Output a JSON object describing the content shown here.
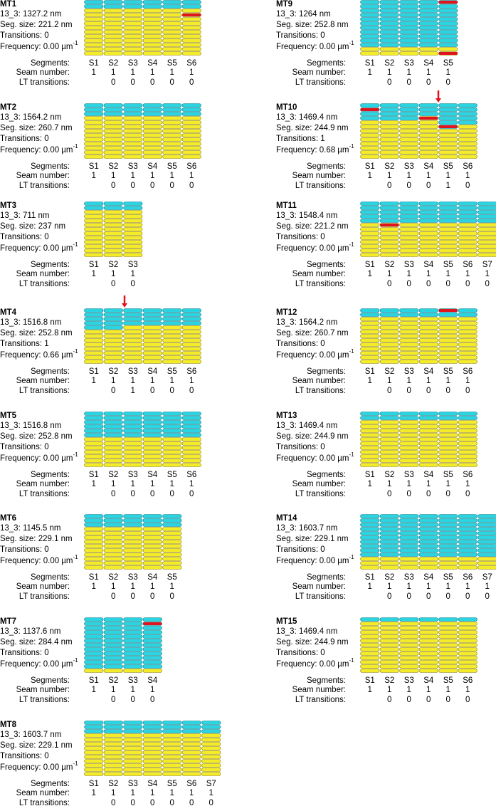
{
  "panels": [
    {
      "title": "MT1",
      "length": "13_3: 1327.2 nm",
      "seg_size": "Seg. size: 221.2 nm",
      "transitions": "Transitions: 0",
      "frequency": "Frequency: 0.00 µm",
      "frequency_exp": "-1",
      "segments_label": "Segments:",
      "segments": [
        "S1",
        "S2",
        "S3",
        "S4",
        "S5",
        "S6"
      ],
      "seam_label": "Seam number:",
      "seam_numbers": [
        1,
        1,
        1,
        1,
        1,
        1
      ],
      "lt_label": "LT transitions:",
      "lt_transitions": [
        0,
        0,
        0,
        0,
        0
      ]
    },
    {
      "title": "MT2",
      "length": "13_3: 1564.2 nm",
      "seg_size": "Seg. size: 260.7 nm",
      "transitions": "Transitions: 0",
      "frequency": "Frequency: 0.00 µm",
      "frequency_exp": "-1",
      "segments_label": "Segments:",
      "segments": [
        "S1",
        "S2",
        "S3",
        "S4",
        "S5",
        "S6"
      ],
      "seam_label": "Seam number:",
      "seam_numbers": [
        1,
        1,
        1,
        1,
        1,
        1
      ],
      "lt_label": "LT transitions:",
      "lt_transitions": [
        0,
        0,
        0,
        0,
        0
      ]
    },
    {
      "title": "MT3",
      "length": "13_3: 711 nm",
      "seg_size": "Seg. size: 237 nm",
      "transitions": "Transitions: 0",
      "frequency": "Frequency: 0.00 µm",
      "frequency_exp": "-1",
      "segments_label": "Segments:",
      "segments": [
        "S1",
        "S2",
        "S3"
      ],
      "seam_label": "Seam number:",
      "seam_numbers": [
        1,
        1,
        1
      ],
      "lt_label": "LT transitions:",
      "lt_transitions": [
        0,
        0
      ]
    },
    {
      "title": "MT4",
      "length": "13_3: 1516.8 nm",
      "seg_size": "Seg. size: 252.8 nm",
      "transitions": "Transitions: 1",
      "frequency": "Frequency: 0.66 µm",
      "frequency_exp": "-1",
      "segments_label": "Segments:",
      "segments": [
        "S1",
        "S2",
        "S3",
        "S4",
        "S5",
        "S6"
      ],
      "seam_label": "Seam number:",
      "seam_numbers": [
        1,
        1,
        1,
        1,
        1,
        1
      ],
      "lt_label": "LT transitions:",
      "lt_transitions": [
        0,
        1,
        0,
        0,
        0
      ]
    },
    {
      "title": "MT5",
      "length": "13_3: 1516.8 nm",
      "seg_size": "Seg. size: 252.8 nm",
      "transitions": "Transitions: 0",
      "frequency": "Frequency: 0.00 µm",
      "frequency_exp": "-1",
      "segments_label": "Segments:",
      "segments": [
        "S1",
        "S2",
        "S3",
        "S4",
        "S5",
        "S6"
      ],
      "seam_label": "Seam number:",
      "seam_numbers": [
        1,
        1,
        1,
        1,
        1,
        1
      ],
      "lt_label": "LT transitions:",
      "lt_transitions": [
        0,
        0,
        0,
        0,
        0
      ]
    },
    {
      "title": "MT6",
      "length": "13_3: 1145.5 nm",
      "seg_size": "Seg. size: 229.1 nm",
      "transitions": "Transitions: 0",
      "frequency": "Frequency: 0.00 µm",
      "frequency_exp": "-1",
      "segments_label": "Segments:",
      "segments": [
        "S1",
        "S2",
        "S3",
        "S4",
        "S5"
      ],
      "seam_label": "Seam number:",
      "seam_numbers": [
        1,
        1,
        1,
        1,
        1
      ],
      "lt_label": "LT transitions:",
      "lt_transitions": [
        0,
        0,
        0,
        0
      ]
    },
    {
      "title": "MT7",
      "length": "13_3: 1137.6 nm",
      "seg_size": "Seg. size: 284.4 nm",
      "transitions": "Transitions: 0",
      "frequency": "Frequency: 0.00 µm",
      "frequency_exp": "-1",
      "segments_label": "Segments:",
      "segments": [
        "S1",
        "S2",
        "S3",
        "S4"
      ],
      "seam_label": "Seam number:",
      "seam_numbers": [
        1,
        1,
        1,
        1
      ],
      "lt_label": "LT transitions:",
      "lt_transitions": [
        0,
        0,
        0
      ]
    },
    {
      "title": "MT8",
      "length": "13_3: 1603.7 nm",
      "seg_size": "Seg. size: 229.1 nm",
      "transitions": "Transitions: 0",
      "frequency": "Frequency: 0.00 µm",
      "frequency_exp": "-1",
      "segments_label": "Segments:",
      "segments": [
        "S1",
        "S2",
        "S3",
        "S4",
        "S5",
        "S6",
        "S7"
      ],
      "seam_label": "Seam number:",
      "seam_numbers": [
        1,
        1,
        1,
        1,
        1,
        1,
        1
      ],
      "lt_label": "LT transitions:",
      "lt_transitions": [
        0,
        0,
        0,
        0,
        0,
        0
      ]
    },
    {
      "title": "MT9",
      "length": "13_3: 1264 nm",
      "seg_size": "Seg. size: 252.8 nm",
      "transitions": "Transitions: 0",
      "frequency": "Frequency: 0.00 µm",
      "frequency_exp": "-1",
      "segments_label": "Segments:",
      "segments": [
        "S1",
        "S2",
        "S3",
        "S4",
        "S5"
      ],
      "seam_label": "Seam number:",
      "seam_numbers": [
        1,
        1,
        1,
        1,
        1
      ],
      "lt_label": "LT transitions:",
      "lt_transitions": [
        0,
        0,
        0,
        0
      ]
    },
    {
      "title": "MT10",
      "length": "13_3: 1469.4 nm",
      "seg_size": "Seg. size: 244.9 nm",
      "transitions": "Transitions: 1",
      "frequency": "Frequency: 0.68 µm",
      "frequency_exp": "-1",
      "segments_label": "Segments:",
      "segments": [
        "S1",
        "S2",
        "S3",
        "S4",
        "S5",
        "S6"
      ],
      "seam_label": "Seam number:",
      "seam_numbers": [
        1,
        1,
        1,
        1,
        1,
        1
      ],
      "lt_label": "LT transitions:",
      "lt_transitions": [
        0,
        0,
        0,
        1,
        0
      ]
    },
    {
      "title": "MT11",
      "length": "13_3: 1548.4 nm",
      "seg_size": "Seg. size: 221.2 nm",
      "transitions": "Transitions: 0",
      "frequency": "Frequency: 0.00 µm",
      "frequency_exp": "-1",
      "segments_label": "Segments:",
      "segments": [
        "S1",
        "S2",
        "S3",
        "S4",
        "S5",
        "S6",
        "S7"
      ],
      "seam_label": "Seam number:",
      "seam_numbers": [
        1,
        1,
        1,
        1,
        1,
        1,
        1
      ],
      "lt_label": "LT transitions:",
      "lt_transitions": [
        0,
        0,
        0,
        0,
        0,
        0
      ]
    },
    {
      "title": "MT12",
      "length": "13_3: 1564.2 nm",
      "seg_size": "Seg. size: 260.7 nm",
      "transitions": "Transitions: 0",
      "frequency": "Frequency: 0.00 µm",
      "frequency_exp": "-1",
      "segments_label": "Segments:",
      "segments": [
        "S1",
        "S2",
        "S3",
        "S4",
        "S5",
        "S6"
      ],
      "seam_label": "Seam number:",
      "seam_numbers": [
        1,
        1,
        1,
        1,
        1,
        1
      ],
      "lt_label": "LT transitions:",
      "lt_transitions": [
        0,
        0,
        0,
        0,
        0
      ]
    },
    {
      "title": "MT13",
      "length": "13_3: 1469.4 nm",
      "seg_size": "Seg. size: 244.9 nm",
      "transitions": "Transitions: 0",
      "frequency": "Frequency: 0.00 µm",
      "frequency_exp": "-1",
      "segments_label": "Segments:",
      "segments": [
        "S1",
        "S2",
        "S3",
        "S4",
        "S5",
        "S6"
      ],
      "seam_label": "Seam number:",
      "seam_numbers": [
        1,
        1,
        1,
        1,
        1,
        1
      ],
      "lt_label": "LT transitions:",
      "lt_transitions": [
        0,
        0,
        0,
        0,
        0
      ]
    },
    {
      "title": "MT14",
      "length": "13_3: 1603.7 nm",
      "seg_size": "Seg. size: 229.1 nm",
      "transitions": "Transitions: 0",
      "frequency": "Frequency: 0.00 µm",
      "frequency_exp": "-1",
      "segments_label": "Segments:",
      "segments": [
        "S1",
        "S2",
        "S3",
        "S4",
        "S5",
        "S6",
        "S7"
      ],
      "seam_label": "Seam number:",
      "seam_numbers": [
        1,
        1,
        1,
        1,
        1,
        1,
        1
      ],
      "lt_label": "LT transitions:",
      "lt_transitions": [
        0,
        0,
        0,
        0,
        0,
        0
      ]
    },
    {
      "title": "MT15",
      "length": "13_3: 1469.4 nm",
      "seg_size": "Seg. size: 244.9 nm",
      "transitions": "Transitions: 0",
      "frequency": "Frequency: 0.00 µm",
      "frequency_exp": "-1",
      "segments_label": "Segments:",
      "segments": [
        "S1",
        "S2",
        "S3",
        "S4",
        "S5",
        "S6"
      ],
      "seam_label": "Seam number:",
      "seam_numbers": [
        1,
        1,
        1,
        1,
        1,
        1
      ],
      "lt_label": "LT transitions:",
      "lt_transitions": [
        0,
        0,
        0,
        0,
        0
      ]
    }
  ]
}
